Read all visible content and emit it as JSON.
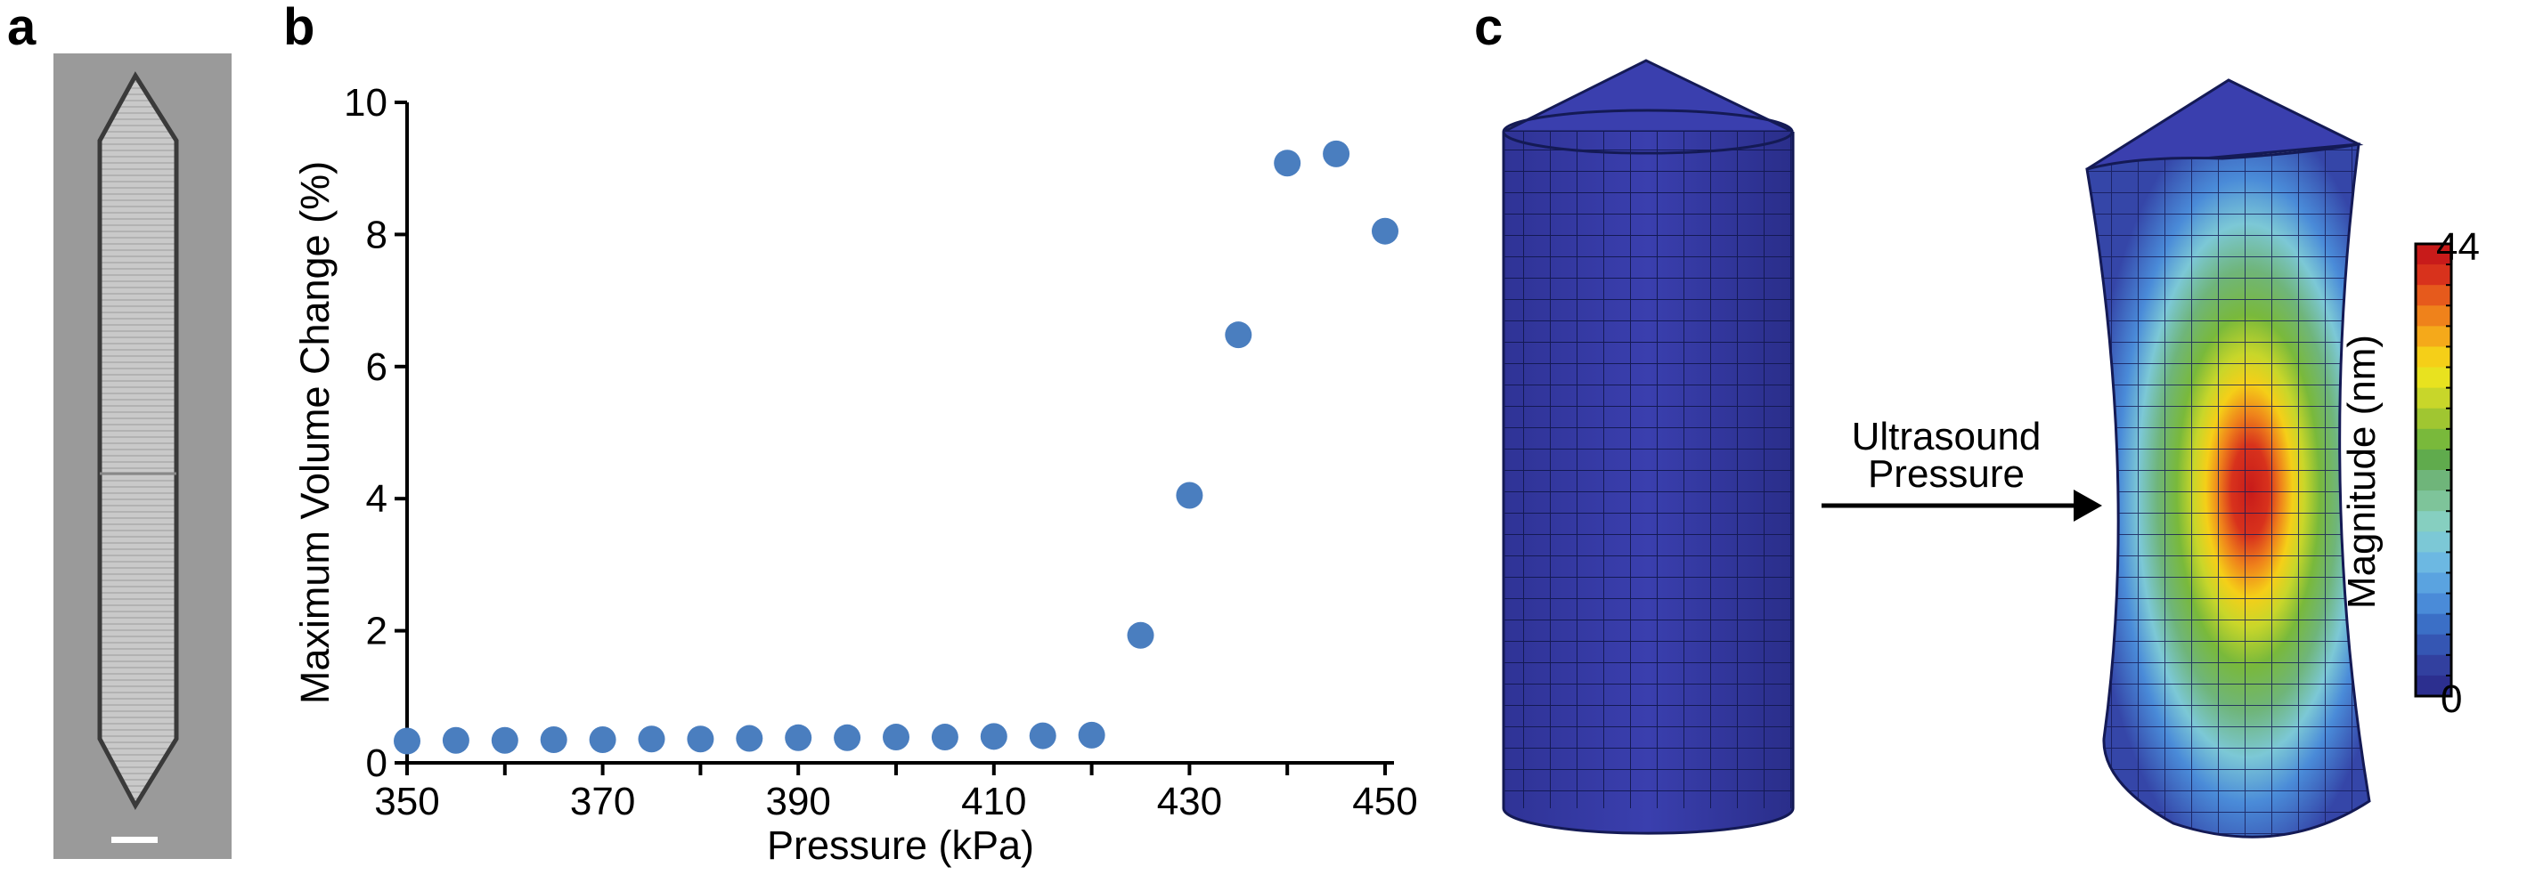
{
  "panels": {
    "a": "a",
    "b": "b",
    "c": "c"
  },
  "chart_data": {
    "type": "scatter",
    "title": "",
    "xlabel": "Pressure (kPa)",
    "ylabel": "Maximum Volume Change (%)",
    "xlim": [
      350,
      450
    ],
    "ylim": [
      0,
      10
    ],
    "xticks": [
      350,
      370,
      390,
      410,
      430,
      450
    ],
    "yticks": [
      0,
      2,
      4,
      6,
      8,
      10
    ],
    "marker_color": "#4a7ebf",
    "grid": false,
    "x": [
      350,
      355,
      360,
      365,
      370,
      375,
      380,
      385,
      390,
      395,
      400,
      405,
      410,
      415,
      420,
      425,
      430,
      435,
      440,
      445,
      450
    ],
    "y": [
      0.33,
      0.34,
      0.34,
      0.35,
      0.35,
      0.36,
      0.36,
      0.37,
      0.38,
      0.38,
      0.39,
      0.39,
      0.4,
      0.41,
      0.42,
      1.93,
      4.05,
      6.48,
      9.08,
      9.22,
      8.05
    ]
  },
  "panel_c": {
    "arrow_label_line1": "Ultrasound",
    "arrow_label_line2": "Pressure",
    "colorbar_label": "Magnitude (nm)",
    "colorbar_max": "44",
    "colorbar_min": "0",
    "colorbar_colors": [
      "#2c2f8f",
      "#32409f",
      "#3556b3",
      "#3b6fc6",
      "#4a8bd8",
      "#5aa3e0",
      "#6cb8e2",
      "#7cc8d6",
      "#86cfc0",
      "#7ec49a",
      "#6fb57a",
      "#60ab4d",
      "#79b93b",
      "#a0c631",
      "#c8d62a",
      "#e8e21f",
      "#f5cf18",
      "#f5a91a",
      "#ef821b",
      "#e65a1c",
      "#d8321c",
      "#c81b1a"
    ],
    "mesh_color": "#2b2f95"
  },
  "panel_a": {
    "image": "tem-micrograph-gas-vesicle"
  }
}
